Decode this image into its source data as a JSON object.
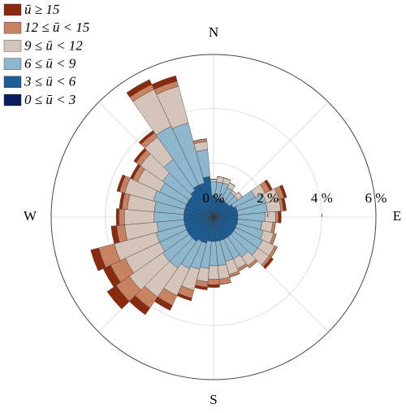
{
  "chart_data": {
    "type": "windrose",
    "x": [
      0,
      10,
      20,
      30,
      40,
      50,
      60,
      70,
      80,
      90,
      100,
      110,
      120,
      130,
      140,
      150,
      160,
      170,
      180,
      190,
      200,
      210,
      220,
      230,
      240,
      250,
      260,
      270,
      280,
      290,
      300,
      310,
      320,
      330,
      340,
      350
    ],
    "xticks": [
      {
        "value": 0,
        "label": "N"
      },
      {
        "value": 90,
        "label": "E"
      },
      {
        "value": 180,
        "label": "S"
      },
      {
        "value": 270,
        "label": "W"
      }
    ],
    "xgrid": [
      0,
      45,
      90,
      135,
      180,
      225,
      270,
      315
    ],
    "ylim": [
      0,
      6
    ],
    "yticks": [
      {
        "value": 0,
        "label": "0 %"
      },
      {
        "value": 2,
        "label": "2 %"
      },
      {
        "value": 4,
        "label": "4 %"
      },
      {
        "value": 6,
        "label": "6 %"
      }
    ],
    "grid": true,
    "legend": "upper left",
    "series": [
      {
        "name": "ū ≥ 15",
        "color": "#8a2a0e",
        "values": [
          0,
          0,
          0,
          0,
          0,
          0,
          0.1,
          0.1,
          0.1,
          0.1,
          0,
          0,
          0,
          0.1,
          0,
          0,
          0,
          0,
          0.1,
          0.1,
          0.1,
          0.2,
          0.3,
          0.4,
          0.3,
          0.3,
          0.2,
          0.1,
          0.1,
          0.1,
          0.1,
          0.1,
          0.1,
          0.2,
          0.2,
          0
        ]
      },
      {
        "name": "12 ≤ ū < 15",
        "color": "#c98261",
        "values": [
          0,
          0,
          0,
          0,
          0,
          0,
          0.2,
          0.2,
          0.1,
          0.1,
          0.1,
          0.1,
          0.1,
          0.1,
          0.1,
          0.1,
          0.1,
          0.2,
          0.2,
          0.2,
          0.3,
          0.4,
          0.5,
          0.6,
          0.6,
          0.6,
          0.3,
          0.2,
          0.2,
          0.2,
          0.2,
          0.2,
          0.2,
          0.2,
          0.2,
          0.1
        ]
      },
      {
        "name": "9 ≤ ū < 12",
        "color": "#d5c4ba",
        "values": [
          0.1,
          0.2,
          0.2,
          0.2,
          0.1,
          0.2,
          0.4,
          0.5,
          0.5,
          0.4,
          0.4,
          0.4,
          0.5,
          0.5,
          0.4,
          0.4,
          0.5,
          0.5,
          0.5,
          0.5,
          0.8,
          1.1,
          1.3,
          1.5,
          1.4,
          1.6,
          1.2,
          1.1,
          1.0,
          1.1,
          0.9,
          1.0,
          1.0,
          1.5,
          1.4,
          0.3
        ]
      },
      {
        "name": "6 ≤ ū < 9",
        "color": "#8eb6cd",
        "values": [
          0.5,
          0.6,
          0.6,
          0.5,
          0.4,
          0.4,
          0.9,
          1.1,
          1.1,
          1.0,
          0.9,
          1.0,
          1.1,
          1.1,
          0.9,
          0.8,
          0.8,
          0.9,
          0.9,
          1.0,
          1.0,
          1.1,
          1.2,
          1.2,
          1.1,
          1.1,
          1.0,
          1.1,
          1.1,
          1.2,
          1.1,
          1.2,
          1.4,
          2.4,
          2.3,
          1.0
        ]
      },
      {
        "name": "3 ≤ ū < 6",
        "color": "#1c5d96",
        "values": [
          0.7,
          0.6,
          0.6,
          0.6,
          0.6,
          0.6,
          0.7,
          0.8,
          0.8,
          0.8,
          0.8,
          0.8,
          0.8,
          0.8,
          0.8,
          0.8,
          0.8,
          0.8,
          0.8,
          0.8,
          0.9,
          0.9,
          1.0,
          1.0,
          1.0,
          1.0,
          1.0,
          1.0,
          1.0,
          1.0,
          1.0,
          1.0,
          1.1,
          1.2,
          1.2,
          1.4
        ]
      },
      {
        "name": "0 ≤ ū < 3",
        "color": "#0b1b5c",
        "values": [
          0.1,
          0.1,
          0.1,
          0.1,
          0.1,
          0.1,
          0.1,
          0.1,
          0.1,
          0.1,
          0.1,
          0.1,
          0.1,
          0.1,
          0.1,
          0.1,
          0.1,
          0.1,
          0.1,
          0.1,
          0.1,
          0.1,
          0.1,
          0.1,
          0.1,
          0.1,
          0.1,
          0.1,
          0.1,
          0.1,
          0.1,
          0.1,
          0.1,
          0.1,
          0.1,
          0.1
        ]
      }
    ]
  }
}
